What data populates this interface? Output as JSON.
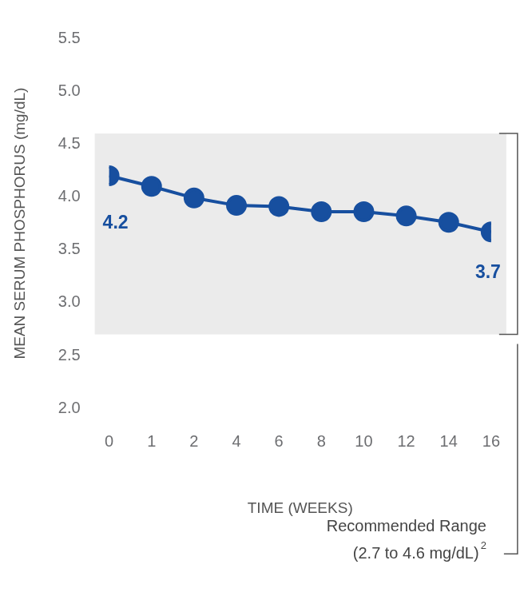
{
  "chart_data": {
    "type": "line",
    "x_label": "TIME (WEEKS)",
    "y_label": "MEAN SERUM PHOSPHORUS (mg/dL)",
    "categories": [
      "0",
      "1",
      "2",
      "4",
      "6",
      "8",
      "10",
      "12",
      "14",
      "16"
    ],
    "values": [
      4.2,
      4.1,
      3.99,
      3.92,
      3.91,
      3.86,
      3.86,
      3.82,
      3.76,
      3.67
    ],
    "value_labels": [
      "4.2",
      null,
      null,
      null,
      null,
      null,
      null,
      null,
      null,
      "3.7"
    ],
    "color": "#174f9f",
    "marker": "circle",
    "ylim": [
      2.0,
      5.5
    ],
    "yticks": [
      {
        "value": 2.0,
        "label": "2.0"
      },
      {
        "value": 2.5,
        "label": "2.5"
      },
      {
        "value": 3.0,
        "label": "3.0"
      },
      {
        "value": 3.5,
        "label": "3.5"
      },
      {
        "value": 4.0,
        "label": "4.0"
      },
      {
        "value": 4.5,
        "label": "4.5"
      },
      {
        "value": 5.0,
        "label": "5.0"
      },
      {
        "value": 5.5,
        "label": "5.5"
      }
    ],
    "grid": false,
    "annotation": {
      "lines": [
        "Recommended Range",
        "(2.7 to 4.6 mg/dL)"
      ],
      "footnote": "2",
      "range": [
        2.7,
        4.6
      ]
    }
  }
}
